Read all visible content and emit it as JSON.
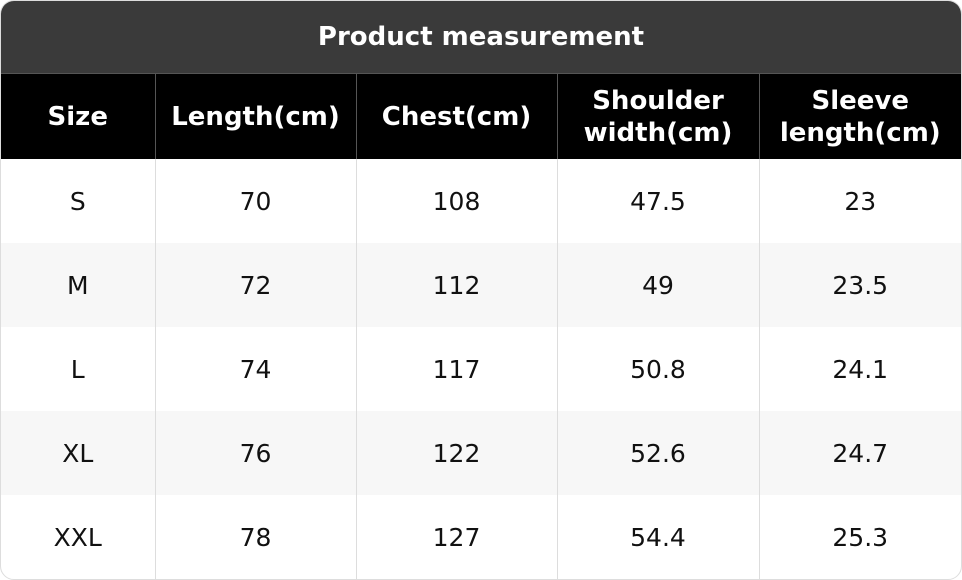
{
  "title": "Product measurement",
  "table": {
    "headers": [
      "Size",
      "Length(cm)",
      "Chest(cm)",
      "Shoulder width(cm)",
      "Sleeve length(cm)"
    ],
    "rows": [
      [
        "S",
        "70",
        "108",
        "47.5",
        "23"
      ],
      [
        "M",
        "72",
        "112",
        "49",
        "23.5"
      ],
      [
        "L",
        "74",
        "117",
        "50.8",
        "24.1"
      ],
      [
        "XL",
        "76",
        "122",
        "52.6",
        "24.7"
      ],
      [
        "XXL",
        "78",
        "127",
        "54.4",
        "25.3"
      ]
    ]
  }
}
